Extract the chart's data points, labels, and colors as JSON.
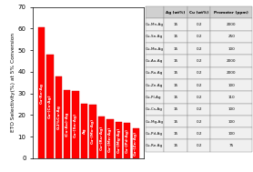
{
  "categories": [
    "Cu-Re-Ag",
    "Cu-(Cs-Ag)",
    "0.2%Cu-Ag",
    "(Cu-Au)-Ag",
    "Cu-(Sn-Ag)",
    "Ag",
    "Cu-(Mo-Ag)",
    "Cu-(Ru-Ag)",
    "Cu-(Mn-Ag)",
    "Cu-(Mg-Ag)",
    "Cu-(Pd-Ag)",
    "Cu-(Zn-Ag)"
  ],
  "values": [
    60.5,
    48.0,
    38.0,
    31.5,
    31.0,
    25.0,
    24.8,
    19.3,
    18.0,
    16.8,
    16.5,
    13.8
  ],
  "bar_color": "#ff0000",
  "ylabel": "ETO Selectivity(%) at 5% Conversion",
  "ylim": [
    0,
    70
  ],
  "yticks": [
    0,
    10,
    20,
    30,
    40,
    50,
    60,
    70
  ],
  "table_col_labels": [
    "Ag (wt%)",
    "Cu (wt%)",
    "Promoter (ppm)"
  ],
  "table_row_labels": [
    "Cu-Mn-Ag",
    "Cu-Sn-Ag",
    "Cu-Mo-Ag",
    "Cu-Au-Ag",
    "Cu-Ru-Ag",
    "Cu-Zn-Ag",
    "Cu-Pl-Ag",
    "Cu-Cs-Ag",
    "Cu-Mg-Ag",
    "Cu-Pd-Ag",
    "Cu-Re-Ag"
  ],
  "table_ag": [
    15,
    15,
    15,
    15,
    15,
    15,
    15,
    15,
    15,
    15,
    15
  ],
  "table_cu": [
    0.2,
    0.2,
    0.2,
    0.2,
    0.2,
    0.2,
    0.2,
    0.2,
    0.2,
    0.2,
    0.2
  ],
  "table_promoter": [
    2000,
    250,
    100,
    2000,
    2000,
    100,
    110,
    100,
    100,
    100,
    75
  ],
  "background_color": "#ffffff",
  "text_color": "#ffffff",
  "bar_edge_color": "#cc0000"
}
